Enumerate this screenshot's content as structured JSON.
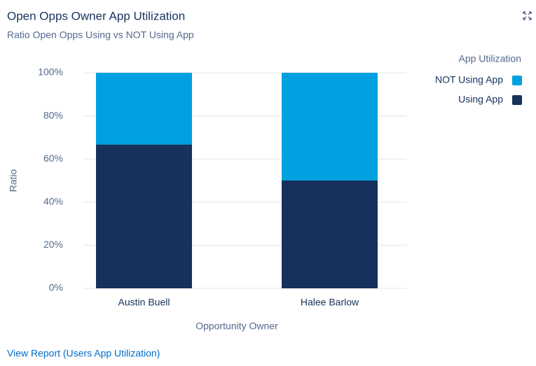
{
  "chart_data": {
    "type": "stacked_bar",
    "title": "Open Opps Owner App Utilization",
    "subtitle": "Ratio Open Opps Using vs NOT Using App",
    "x_label": "Opportunity Owner",
    "y_label": "Ratio",
    "legend_title": "App Utilization",
    "categories": [
      "Austin Buell",
      "Halee Barlow"
    ],
    "series": [
      {
        "name": "Using App",
        "color": "#16325c",
        "values": [
          66.7,
          50
        ]
      },
      {
        "name": "NOT Using App",
        "color": "#00a1e0",
        "values": [
          33.3,
          50
        ]
      }
    ],
    "ylim": [
      0,
      100
    ],
    "yticks": [
      {
        "value": 0,
        "label": "0%"
      },
      {
        "value": 20,
        "label": "20%"
      },
      {
        "value": 40,
        "label": "40%"
      },
      {
        "value": 60,
        "label": "60%"
      },
      {
        "value": 80,
        "label": "80%"
      },
      {
        "value": 100,
        "label": "100%"
      }
    ],
    "grid": true,
    "legend_position": "right",
    "footer_link": "View Report (Users App Utilization)"
  }
}
